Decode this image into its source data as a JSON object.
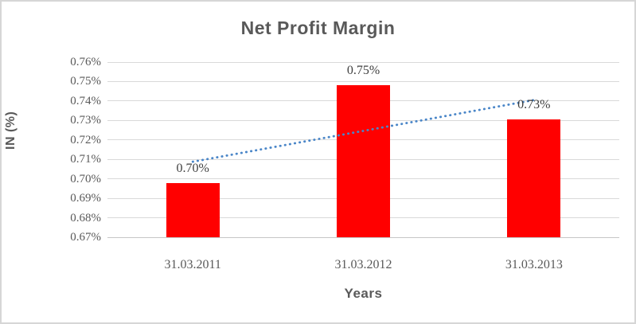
{
  "chart_data": {
    "type": "bar",
    "title": "Net Profit Margin",
    "xlabel": "Years",
    "ylabel": "IN (%)",
    "categories": [
      "31.03.2011",
      "31.03.2012",
      "31.03.2013"
    ],
    "series": [
      {
        "name": "Net Profit Margin",
        "values": [
          0.698,
          0.748,
          0.7305
        ],
        "data_labels": [
          "0.70%",
          "0.75%",
          "0.73%"
        ],
        "color": "#FF0000"
      }
    ],
    "y_ticks": [
      "0.76%",
      "0.75%",
      "0.74%",
      "0.73%",
      "0.72%",
      "0.71%",
      "0.70%",
      "0.69%",
      "0.68%",
      "0.67%"
    ],
    "ylim": [
      0.67,
      0.76
    ],
    "grid": true,
    "legend": "none",
    "trendline": {
      "type": "linear",
      "style": "dotted",
      "color": "#4A86C8",
      "start_value": 0.7088,
      "end_value": 0.7405
    },
    "colors": {
      "title_text": "#595959",
      "axis_text": "#595959",
      "data_label_text": "#3F3F3F",
      "gridline": "#D9D9D9",
      "chart_border": "#D6D6D6",
      "bar": "#FF0000",
      "trendline": "#4A86C8"
    }
  }
}
